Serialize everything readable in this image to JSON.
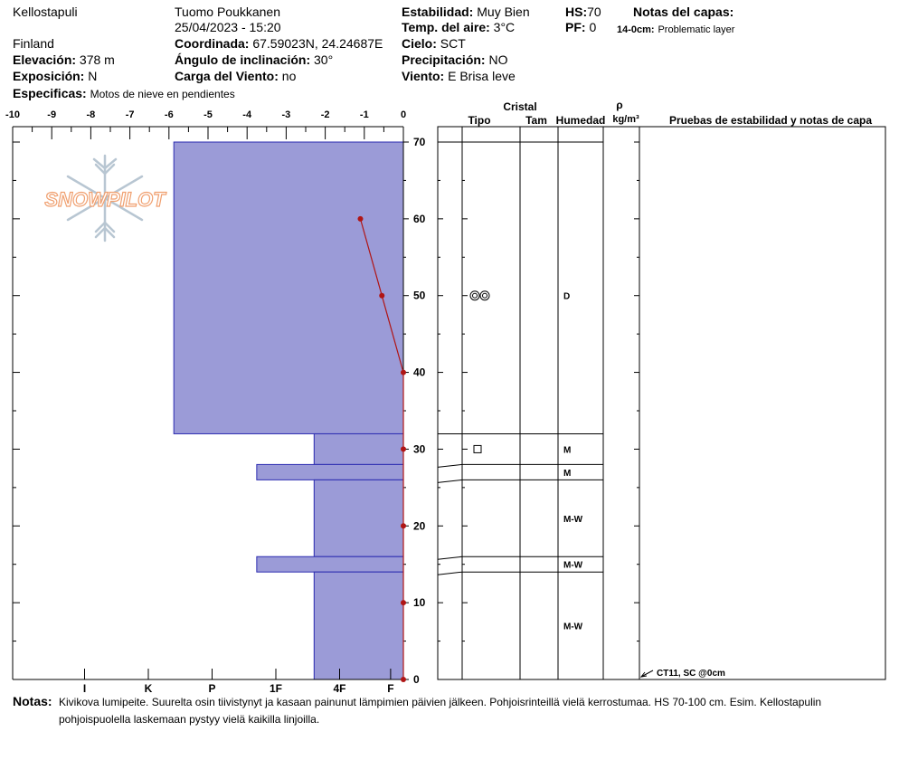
{
  "header": {
    "location": "Kellostapuli",
    "country": "Finland",
    "observer": "Tuomo Poukkanen",
    "datetime": "25/04/2023 - 15:20",
    "elevation": {
      "label": "Elevación:",
      "value": "378 m"
    },
    "aspect": {
      "label": "Exposición:",
      "value": "N"
    },
    "specifics": {
      "label": "Especificas:",
      "value": "Motos de nieve en pendientes"
    },
    "coordinates": {
      "label": "Coordinada:",
      "value": "67.59023N, 24.24687E"
    },
    "slope_angle": {
      "label": "Ángulo de inclinación:",
      "value": "30°"
    },
    "wind_loading": {
      "label": "Carga del Viento:",
      "value": "no"
    },
    "stability": {
      "label": "Estabilidad:",
      "value": "Muy Bien"
    },
    "air_temp": {
      "label": "Temp. del aire:",
      "value": "3°C"
    },
    "sky": {
      "label": "Cielo:",
      "value": "SCT"
    },
    "precipitation": {
      "label": "Precipitación:",
      "value": "NO"
    },
    "wind": {
      "label": "Viento:",
      "value": "E Brisa leve"
    },
    "hs": {
      "label": "HS:",
      "value": "70"
    },
    "pf": {
      "label": "PF:",
      "value": "0"
    },
    "layer_notes_title": "Notas del capas:",
    "layer_note": {
      "label": "14-0cm:",
      "value": "Problematic layer"
    }
  },
  "logo_text": "SNOWPILOT",
  "notes": {
    "label": "Notas:",
    "line1": "Kivikova lumipeite. Suurelta osin tiivistynyt ja kasaan painunut lämpimien päivien jälkeen. Pohjoisrinteillä vielä kerrostumaa. HS 70-100 cm. Esim. Kellostapulin",
    "line2": "pohjoispuolella laskemaan pystyy vielä kaikilla linjoilla."
  },
  "columns": {
    "crystal": "Cristal",
    "type": "Tipo",
    "size": "Tam",
    "moisture": "Humedad",
    "rho": "ρ",
    "density_unit": "kg/m³",
    "tests": "Pruebas de estabilidad y notas de capa"
  },
  "test_note": "CT11, SC @0cm",
  "colors": {
    "fill": "#9b9bd7",
    "edge": "#2b2bb0",
    "temp": "#b01515"
  },
  "chart_data": {
    "type": "snow_profile",
    "temp_axis": {
      "ticks": [
        "-10",
        "-9",
        "-8",
        "-7",
        "-6",
        "-5",
        "-4",
        "-3",
        "-2",
        "-1",
        "0"
      ],
      "range": [
        -10,
        0
      ]
    },
    "hardness_axis": {
      "ticks": [
        "I",
        "K",
        "P",
        "1F",
        "4F",
        "F"
      ],
      "hand_scale": [
        5,
        4,
        3,
        2,
        1,
        0.2
      ]
    },
    "height_axis": {
      "ticks": [
        "0",
        "10",
        "20",
        "30",
        "40",
        "50",
        "60",
        "70"
      ],
      "range": [
        0,
        70
      ]
    },
    "layers": [
      {
        "top": 70,
        "bottom": 32,
        "hardness_hand": 3.6,
        "moisture": "D",
        "grain": "rounded-pair"
      },
      {
        "top": 32,
        "bottom": 28,
        "hardness_hand": 1.4,
        "moisture": "M",
        "grain": "faceted"
      },
      {
        "top": 28,
        "bottom": 26,
        "hardness_hand": 2.3,
        "moisture": "M",
        "grain": ""
      },
      {
        "top": 26,
        "bottom": 16,
        "hardness_hand": 1.4,
        "moisture": "M-W",
        "grain": ""
      },
      {
        "top": 16,
        "bottom": 14,
        "hardness_hand": 2.3,
        "moisture": "M-W",
        "grain": ""
      },
      {
        "top": 14,
        "bottom": 0,
        "hardness_hand": 1.4,
        "moisture": "M-W",
        "grain": ""
      }
    ],
    "temperature_profile": [
      {
        "height": 60,
        "temp": -1.1
      },
      {
        "height": 50,
        "temp": -0.55
      },
      {
        "height": 40,
        "temp": 0
      },
      {
        "height": 30,
        "temp": 0
      },
      {
        "height": 20,
        "temp": 0
      },
      {
        "height": 10,
        "temp": 0
      },
      {
        "height": 0,
        "temp": 0
      }
    ]
  }
}
